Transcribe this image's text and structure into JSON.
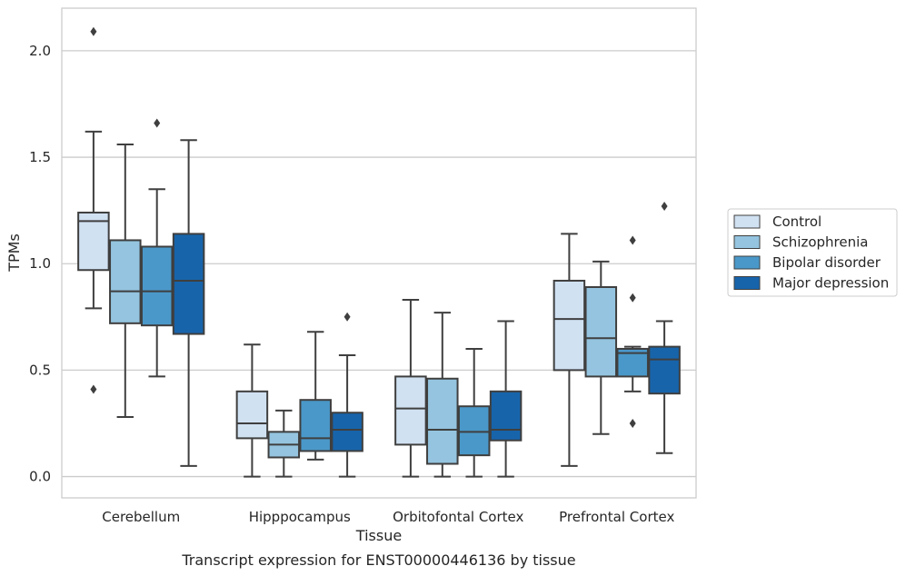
{
  "chart_data": {
    "type": "box",
    "title": "",
    "caption": "Transcript expression for ENST00000446136 by tissue",
    "xlabel": "Tissue",
    "ylabel": "TPMs",
    "ylim": [
      -0.1,
      2.2
    ],
    "yticks": [
      "0.0",
      "0.5",
      "1.0",
      "1.5",
      "2.0"
    ],
    "ytick_values": [
      0.0,
      0.5,
      1.0,
      1.5,
      2.0
    ],
    "grid": "horizontal",
    "legend_position": "right",
    "categories": [
      "Cerebellum",
      "Hipppocampus",
      "Orbitofontal Cortex",
      "Prefrontal Cortex"
    ],
    "series": [
      {
        "name": "Control",
        "color": "#d0e1f2",
        "boxes": [
          {
            "min": 0.79,
            "q1": 0.97,
            "median": 1.2,
            "q3": 1.24,
            "max": 1.62,
            "outliers": [
              2.09,
              0.41
            ]
          },
          {
            "min": 0.0,
            "q1": 0.18,
            "median": 0.25,
            "q3": 0.4,
            "max": 0.62,
            "outliers": []
          },
          {
            "min": 0.0,
            "q1": 0.15,
            "median": 0.32,
            "q3": 0.47,
            "max": 0.83,
            "outliers": []
          },
          {
            "min": 0.05,
            "q1": 0.5,
            "median": 0.74,
            "q3": 0.92,
            "max": 1.14,
            "outliers": []
          }
        ]
      },
      {
        "name": "Schizophrenia",
        "color": "#94c4df",
        "boxes": [
          {
            "min": 0.28,
            "q1": 0.72,
            "median": 0.87,
            "q3": 1.11,
            "max": 1.56,
            "outliers": []
          },
          {
            "min": 0.0,
            "q1": 0.09,
            "median": 0.15,
            "q3": 0.21,
            "max": 0.31,
            "outliers": []
          },
          {
            "min": 0.0,
            "q1": 0.06,
            "median": 0.22,
            "q3": 0.46,
            "max": 0.77,
            "outliers": []
          },
          {
            "min": 0.2,
            "q1": 0.47,
            "median": 0.65,
            "q3": 0.89,
            "max": 1.01,
            "outliers": []
          }
        ]
      },
      {
        "name": "Bipolar disorder",
        "color": "#4a98c9",
        "boxes": [
          {
            "min": 0.47,
            "q1": 0.71,
            "median": 0.87,
            "q3": 1.08,
            "max": 1.35,
            "outliers": [
              1.66
            ]
          },
          {
            "min": 0.08,
            "q1": 0.12,
            "median": 0.18,
            "q3": 0.36,
            "max": 0.68,
            "outliers": []
          },
          {
            "min": 0.0,
            "q1": 0.1,
            "median": 0.21,
            "q3": 0.33,
            "max": 0.6,
            "outliers": []
          },
          {
            "min": 0.4,
            "q1": 0.47,
            "median": 0.58,
            "q3": 0.6,
            "max": 0.61,
            "outliers": [
              1.11,
              0.84,
              0.25
            ]
          }
        ]
      },
      {
        "name": "Major depression",
        "color": "#1764ab",
        "boxes": [
          {
            "min": 0.05,
            "q1": 0.67,
            "median": 0.92,
            "q3": 1.14,
            "max": 1.58,
            "outliers": []
          },
          {
            "min": 0.0,
            "q1": 0.12,
            "median": 0.22,
            "q3": 0.3,
            "max": 0.57,
            "outliers": [
              0.75
            ]
          },
          {
            "min": 0.0,
            "q1": 0.17,
            "median": 0.22,
            "q3": 0.4,
            "max": 0.73,
            "outliers": []
          },
          {
            "min": 0.11,
            "q1": 0.39,
            "median": 0.55,
            "q3": 0.61,
            "max": 0.73,
            "outliers": [
              1.27
            ]
          }
        ]
      }
    ]
  }
}
